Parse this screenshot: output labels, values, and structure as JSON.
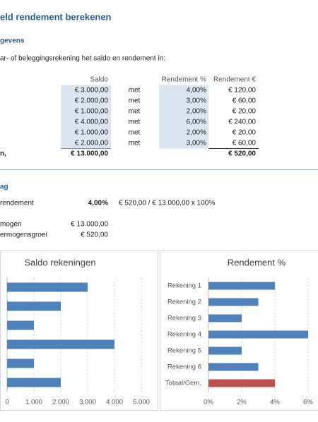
{
  "sheet": {
    "title": "eld rendement berekenen",
    "input_heading": "gevens",
    "instruction": "ar- of beleggingsrekening het saldo en rendement in:",
    "table": {
      "headers": [
        "Saldo",
        "Rendement %",
        "Rendement €"
      ],
      "rows": [
        [
          "€ 3.000,00",
          "met",
          "4,00%",
          "€ 120,00"
        ],
        [
          "€ 2.000,00",
          "met",
          "3,00%",
          "€ 60,00"
        ],
        [
          "€ 1.000,00",
          "met",
          "2,00%",
          "€ 20,00"
        ],
        [
          "€ 4.000,00",
          "met",
          "6,00%",
          "€ 240,00"
        ],
        [
          "€ 1.000,00",
          "met",
          "2,00%",
          "€ 20,00"
        ],
        [
          "€ 2.000,00",
          "met",
          "3,00%",
          "€ 60,00"
        ]
      ],
      "total": [
        "n,",
        "€ 13.000,00",
        "€ 520,00"
      ]
    },
    "result_heading": "ag",
    "results": [
      [
        "rendement",
        "4,00%",
        "€ 520,00 / € 13.000,00 x 100%"
      ],
      [
        "mogen",
        "€ 13.000,00"
      ],
      [
        "ermogensgroei",
        "€ 520,00"
      ]
    ]
  },
  "chart_data": [
    {
      "type": "bar",
      "orientation": "horizontal",
      "title": "Saldo rekeningen",
      "series": [
        {
          "color": "#4f81bd",
          "values": [
            3000,
            2000,
            1000,
            4000,
            1000,
            2000
          ]
        }
      ],
      "xlim": [
        0,
        5000
      ],
      "xticks": [
        0,
        {
          "value": 1000,
          "label": "1.000"
        },
        {
          "value": 2000,
          "label": "2.000"
        },
        {
          "value": 3000,
          "label": "3.000"
        },
        {
          "value": 4000,
          "label": "4.000"
        },
        {
          "value": 5000,
          "label": "5.000"
        }
      ],
      "grid": true
    },
    {
      "type": "bar",
      "orientation": "horizontal",
      "title": "Rendement %",
      "categories": [
        "Rekening 1",
        "Rekening 2",
        "Rekening 3",
        "Rekening 4",
        "Rekening 5",
        "Rekening 6",
        "Totaal/Gem,"
      ],
      "series": [
        {
          "colors": [
            "#4f81bd",
            "#4f81bd",
            "#4f81bd",
            "#4f81bd",
            "#4f81bd",
            "#4f81bd",
            "#c0504d"
          ],
          "values": [
            4,
            3,
            2,
            6,
            2,
            3,
            4
          ]
        }
      ],
      "xlim": [
        0,
        6
      ],
      "xticks": [
        {
          "value": 0,
          "label": "0%"
        },
        {
          "value": 2,
          "label": "2%"
        },
        {
          "value": 4,
          "label": "4%"
        },
        {
          "value": 6,
          "label": "6%"
        }
      ],
      "grid": true
    }
  ]
}
